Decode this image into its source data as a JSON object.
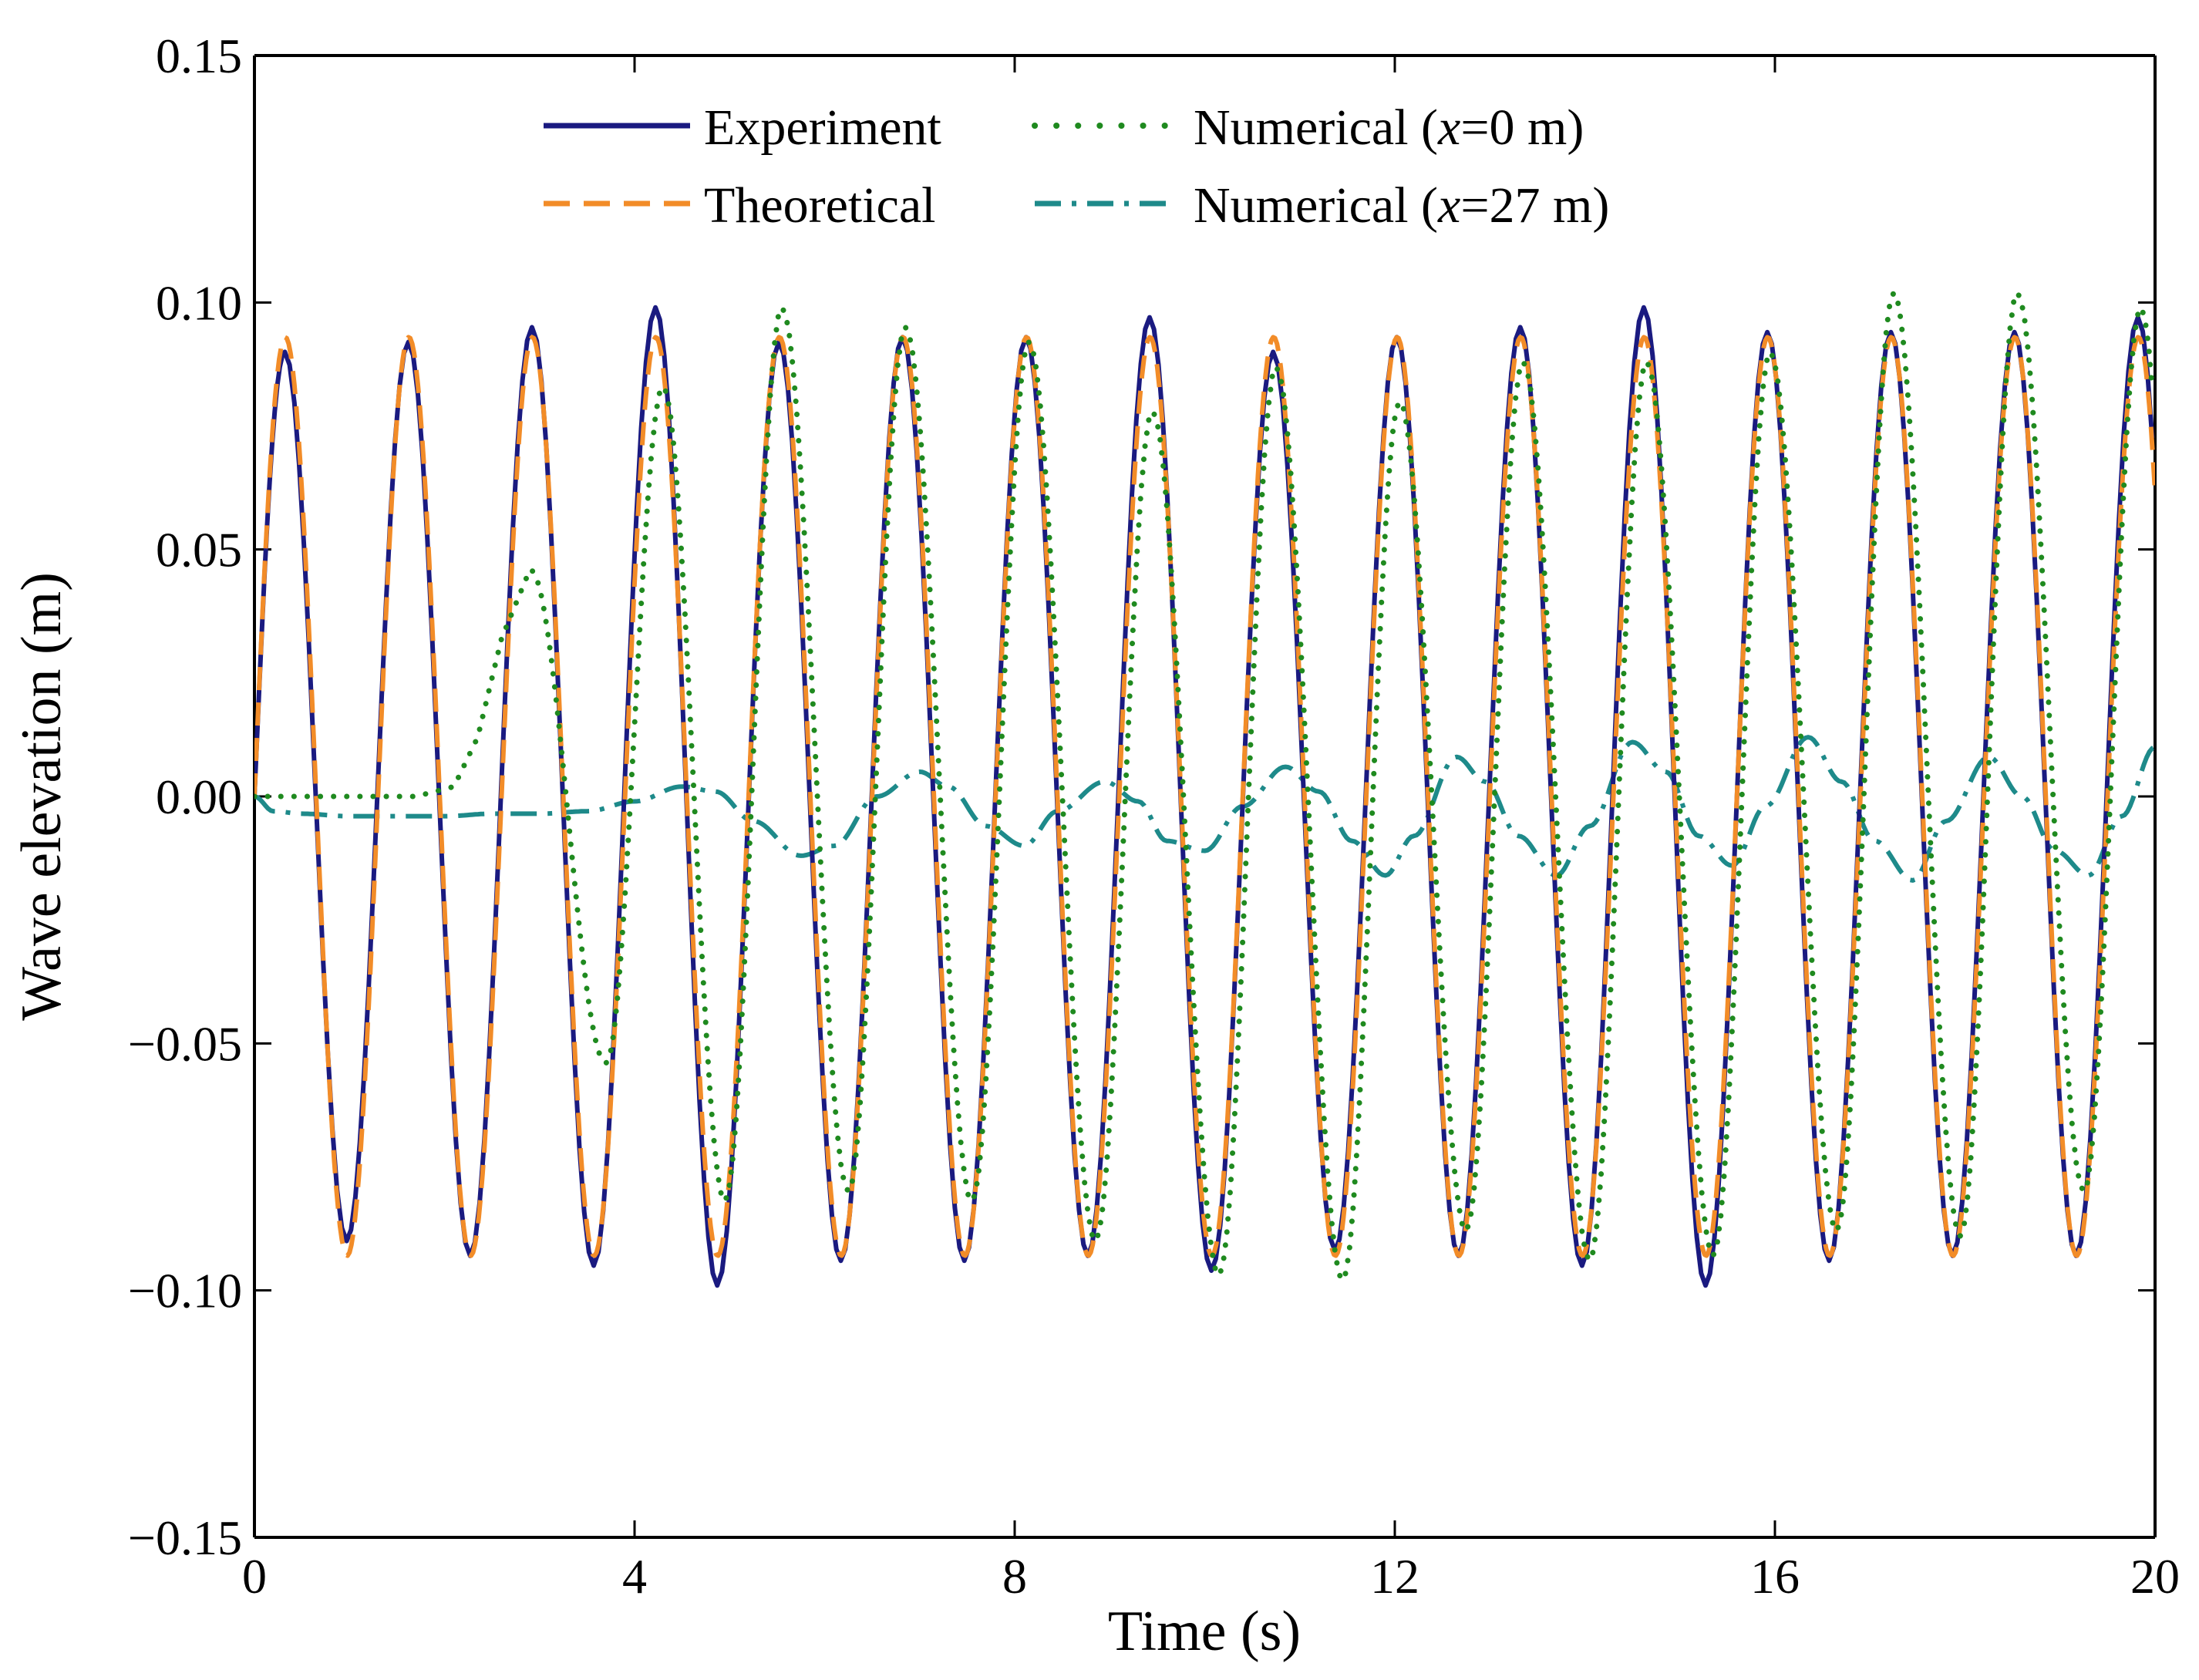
{
  "chart_data": {
    "type": "line",
    "xlabel": "Time (s)",
    "ylabel": "Wave elevation (m)",
    "xlim": [
      0,
      20
    ],
    "ylim": [
      -0.15,
      0.15
    ],
    "x_ticks": [
      "0",
      "4",
      "8",
      "12",
      "16",
      "20"
    ],
    "x_tick_values": [
      0,
      4,
      8,
      12,
      16,
      20
    ],
    "y_ticks": [
      "−0.15",
      "−0.10",
      "−0.05",
      "0.00",
      "0.05",
      "0.10",
      "0.15"
    ],
    "y_tick_values": [
      -0.15,
      -0.1,
      -0.05,
      0.0,
      0.05,
      0.1,
      0.15
    ],
    "period_s": 1.3,
    "legend_placement": "top-center, two columns",
    "series": [
      {
        "name": "Experiment",
        "label": "Experiment",
        "color": "#1a1a80",
        "style": "solid",
        "peak_times": [
          0.32,
          1.62,
          2.92,
          4.22,
          5.52,
          6.82,
          8.12,
          9.42,
          10.72,
          12.02,
          13.32,
          14.62,
          15.92,
          17.22,
          18.52,
          19.82
        ],
        "peak_values": [
          0.09,
          0.092,
          0.095,
          0.099,
          0.092,
          0.093,
          0.093,
          0.097,
          0.09,
          0.093,
          0.095,
          0.099,
          0.094,
          0.094,
          0.094,
          0.097
        ],
        "trough_times": [
          0.97,
          2.27,
          3.57,
          4.87,
          6.17,
          7.47,
          8.77,
          10.07,
          11.37,
          12.67,
          13.97,
          15.27,
          16.57,
          17.87,
          19.17
        ],
        "trough_values": [
          -0.09,
          -0.093,
          -0.095,
          -0.099,
          -0.094,
          -0.094,
          -0.093,
          -0.096,
          -0.092,
          -0.093,
          -0.095,
          -0.099,
          -0.094,
          -0.093,
          -0.093
        ]
      },
      {
        "name": "Theoretical",
        "label": "Theoretical",
        "color": "#f28c28",
        "style": "dashed",
        "amplitude": 0.093,
        "start_time": 0.0
      },
      {
        "name": "Numerical (x=0 m)",
        "label_prefix": "Numerical (",
        "label_var": "x",
        "label_suffix": "=0 m)",
        "color": "#1f8a1f",
        "style": "dotted",
        "start_time": 1.8,
        "ramp_end_time": 5.5,
        "peak_times": [
          2.9,
          4.3,
          5.55,
          6.85,
          8.15,
          9.45,
          10.75,
          12.05,
          13.35,
          14.65,
          15.95,
          17.25,
          18.55,
          19.85
        ],
        "peak_values": [
          0.046,
          0.083,
          0.099,
          0.095,
          0.092,
          0.078,
          0.087,
          0.08,
          0.088,
          0.088,
          0.09,
          0.102,
          0.102,
          0.099
        ],
        "trough_times": [
          3.7,
          4.95,
          6.25,
          7.55,
          8.85,
          10.15,
          11.45,
          12.75,
          14.05,
          15.35,
          16.65,
          17.95,
          19.25
        ],
        "trough_values": [
          -0.054,
          -0.082,
          -0.08,
          -0.082,
          -0.09,
          -0.097,
          -0.098,
          -0.088,
          -0.094,
          -0.093,
          -0.088,
          -0.089,
          -0.08
        ]
      },
      {
        "name": "Numerical (x=27 m)",
        "label_prefix": "Numerical (",
        "label_var": "x",
        "label_suffix": "=27 m)",
        "color": "#1e8a8a",
        "style": "dashdot",
        "points": [
          [
            0.0,
            0.0
          ],
          [
            0.2,
            -0.003
          ],
          [
            0.5,
            -0.0035
          ],
          [
            1.0,
            -0.004
          ],
          [
            1.5,
            -0.004
          ],
          [
            2.0,
            -0.004
          ],
          [
            2.5,
            -0.0035
          ],
          [
            3.0,
            -0.0035
          ],
          [
            3.5,
            -0.003
          ],
          [
            4.0,
            -0.001
          ],
          [
            4.5,
            0.002
          ],
          [
            4.85,
            0.001
          ],
          [
            5.25,
            -0.005
          ],
          [
            5.75,
            -0.012
          ],
          [
            6.1,
            -0.01
          ],
          [
            6.55,
            0.0
          ],
          [
            7.0,
            0.005
          ],
          [
            7.3,
            0.002
          ],
          [
            7.7,
            -0.006
          ],
          [
            8.1,
            -0.01
          ],
          [
            8.45,
            -0.003
          ],
          [
            8.95,
            0.003
          ],
          [
            9.3,
            -0.001
          ],
          [
            9.6,
            -0.009
          ],
          [
            10.0,
            -0.011
          ],
          [
            10.4,
            -0.002
          ],
          [
            10.85,
            0.006
          ],
          [
            11.2,
            0.001
          ],
          [
            11.55,
            -0.009
          ],
          [
            11.9,
            -0.016
          ],
          [
            12.2,
            -0.008
          ],
          [
            12.65,
            0.008
          ],
          [
            12.95,
            0.003
          ],
          [
            13.3,
            -0.008
          ],
          [
            13.7,
            -0.016
          ],
          [
            14.05,
            -0.006
          ],
          [
            14.5,
            0.011
          ],
          [
            14.85,
            0.005
          ],
          [
            15.2,
            -0.008
          ],
          [
            15.55,
            -0.014
          ],
          [
            15.9,
            -0.002
          ],
          [
            16.35,
            0.012
          ],
          [
            16.7,
            0.003
          ],
          [
            17.05,
            -0.009
          ],
          [
            17.45,
            -0.017
          ],
          [
            17.8,
            -0.005
          ],
          [
            18.25,
            0.008
          ],
          [
            18.6,
            0.0
          ],
          [
            18.95,
            -0.011
          ],
          [
            19.3,
            -0.016
          ],
          [
            19.65,
            -0.004
          ],
          [
            20.0,
            0.01
          ]
        ]
      }
    ]
  }
}
